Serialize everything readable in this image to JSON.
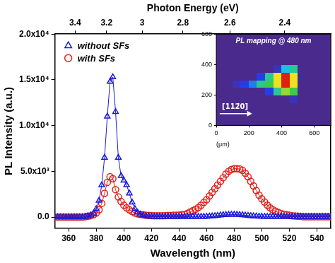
{
  "chart_data": [
    {
      "type": "line",
      "x_label": "Wavelength (nm)",
      "y_label": "PL Intensity (a.u.)",
      "x2_label": "Photon Energy (eV)",
      "x": [
        350,
        352,
        354,
        356,
        358,
        360,
        362,
        364,
        366,
        368,
        370,
        372,
        374,
        376,
        378,
        380,
        382,
        384,
        386,
        388,
        390,
        392,
        394,
        396,
        398,
        400,
        402,
        404,
        406,
        408,
        410,
        412,
        414,
        416,
        418,
        420,
        422,
        424,
        426,
        428,
        430,
        432,
        434,
        436,
        438,
        440,
        442,
        444,
        446,
        448,
        450,
        452,
        454,
        456,
        458,
        460,
        462,
        464,
        466,
        468,
        470,
        472,
        474,
        476,
        478,
        480,
        482,
        484,
        486,
        488,
        490,
        492,
        494,
        496,
        498,
        500,
        502,
        504,
        506,
        508,
        510,
        512,
        514,
        516,
        518,
        520,
        522,
        524,
        526,
        528,
        530,
        532,
        534,
        536,
        538,
        540,
        542,
        544,
        546,
        548,
        550
      ],
      "series": [
        {
          "name": "without SFs",
          "color": "#1a1ad6",
          "marker": "triangle",
          "line_style": "solid",
          "values": [
            0,
            0,
            0,
            0,
            0,
            0,
            0,
            0,
            0,
            0,
            0,
            50,
            100,
            200,
            400,
            900,
            1800,
            3500,
            6500,
            11000,
            14800,
            15300,
            11500,
            6500,
            4500,
            4000,
            3500,
            2600,
            1600,
            900,
            500,
            300,
            200,
            100,
            80,
            50,
            50,
            50,
            50,
            50,
            50,
            50,
            50,
            50,
            50,
            50,
            50,
            50,
            50,
            50,
            50,
            50,
            50,
            50,
            50,
            50,
            80,
            100,
            130,
            160,
            200,
            230,
            250,
            270,
            280,
            280,
            270,
            250,
            220,
            190,
            160,
            130,
            110,
            90,
            70,
            60,
            50,
            50,
            50,
            50,
            50,
            50,
            50,
            50,
            50,
            50,
            50,
            50,
            50,
            50,
            50,
            50,
            50,
            50,
            50,
            50,
            50,
            50,
            50,
            50,
            50
          ]
        },
        {
          "name": "with SFs",
          "color": "#e0201a",
          "marker": "circle",
          "line_style": "solid",
          "values": [
            0,
            0,
            0,
            0,
            0,
            0,
            0,
            0,
            0,
            0,
            0,
            50,
            100,
            150,
            250,
            450,
            800,
            1500,
            2600,
            3800,
            4400,
            4200,
            3000,
            2200,
            1700,
            1300,
            1000,
            800,
            600,
            450,
            350,
            300,
            250,
            200,
            180,
            160,
            150,
            150,
            150,
            150,
            160,
            170,
            180,
            190,
            200,
            220,
            250,
            300,
            400,
            550,
            700,
            850,
            1050,
            1300,
            1600,
            1900,
            2300,
            2700,
            3100,
            3500,
            3900,
            4300,
            4700,
            5000,
            5200,
            5300,
            5300,
            5250,
            5100,
            4800,
            4400,
            3900,
            3400,
            2900,
            2400,
            2000,
            1650,
            1300,
            1000,
            800,
            650,
            500,
            400,
            300,
            250,
            200,
            150,
            120,
            100,
            80,
            50,
            50,
            50,
            50,
            50,
            50,
            50,
            50,
            50,
            50,
            50
          ]
        }
      ],
      "xlim": [
        350,
        550
      ],
      "xticks": [
        360,
        380,
        400,
        420,
        440,
        460,
        480,
        500,
        520,
        540
      ],
      "x2lim": [
        3.5424,
        2.2543
      ],
      "x2ticks": [
        3.4,
        3.2,
        3,
        2.8,
        2.6,
        2.4
      ],
      "ylim": [
        -1200,
        20000
      ],
      "yticks": [
        {
          "value": 0,
          "label": "0.0"
        },
        {
          "value": 5000,
          "label": "5.0x10³"
        },
        {
          "value": 10000,
          "label": "1.0x10⁴"
        },
        {
          "value": 15000,
          "label": "1.5x10⁴"
        },
        {
          "value": 20000,
          "label": "2.0x10⁴"
        }
      ],
      "grid": false,
      "legend": "upper left"
    },
    {
      "type": "heatmap",
      "title": "PL mapping @ 480 nm",
      "x_label": "(μm)",
      "annotations": [
        "[112̄0]"
      ],
      "x": [
        25,
        75,
        125,
        175,
        225,
        275,
        325,
        375,
        425,
        475,
        525,
        575,
        625,
        675
      ],
      "y": [
        25,
        75,
        125,
        175,
        225,
        275,
        325,
        375,
        425,
        475,
        525,
        575
      ],
      "values": [
        [
          0,
          0,
          0,
          0,
          0,
          0,
          0,
          0,
          0,
          0,
          0,
          0,
          0,
          0
        ],
        [
          0,
          0,
          0,
          0,
          0,
          0,
          0,
          0,
          0,
          0,
          0,
          0,
          0,
          0
        ],
        [
          0,
          0,
          0,
          0,
          0,
          0,
          0,
          0,
          0,
          0,
          0,
          0,
          0,
          0
        ],
        [
          0,
          0,
          0,
          0,
          0,
          0,
          0,
          0,
          0,
          1,
          0,
          0,
          0,
          0
        ],
        [
          0,
          0,
          0,
          0,
          0,
          0,
          2,
          5,
          7,
          6,
          0,
          0,
          0,
          0
        ],
        [
          0,
          0,
          1,
          2,
          3,
          5,
          6,
          8,
          10,
          8,
          0,
          0,
          0,
          0
        ],
        [
          0,
          0,
          0,
          0,
          0,
          2,
          5,
          8,
          10,
          8,
          0,
          0,
          0,
          0
        ],
        [
          0,
          0,
          0,
          0,
          0,
          0,
          0,
          1,
          4,
          5,
          0,
          0,
          0,
          0
        ],
        [
          0,
          0,
          0,
          0,
          0,
          0,
          0,
          0,
          0,
          0,
          0,
          0,
          0,
          0
        ],
        [
          0,
          0,
          0,
          0,
          0,
          0,
          0,
          0,
          0,
          0,
          0,
          0,
          0,
          0
        ],
        [
          0,
          0,
          0,
          0,
          0,
          0,
          0,
          0,
          0,
          0,
          0,
          0,
          0,
          0
        ],
        [
          0,
          0,
          0,
          0,
          0,
          0,
          0,
          0,
          0,
          0,
          0,
          0,
          0,
          0
        ]
      ],
      "xlim": [
        0,
        700
      ],
      "ylim": [
        0,
        600
      ],
      "xticks": [
        0,
        200,
        400,
        600
      ],
      "yticks": [
        0,
        200,
        400,
        600
      ],
      "grid": false
    }
  ]
}
